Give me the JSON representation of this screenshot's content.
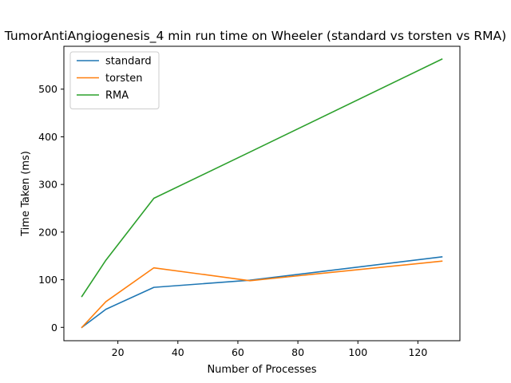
{
  "chart_data": {
    "type": "line",
    "title": "TumorAntiAngiogenesis_4 min run time on Wheeler (standard vs torsten vs RMA)",
    "xlabel": "Number of Processes",
    "ylabel": "Time Taken (ms)",
    "xlim": [
      2,
      134
    ],
    "ylim": [
      -28,
      590
    ],
    "xticks": [
      20,
      40,
      60,
      80,
      100,
      120
    ],
    "yticks": [
      0,
      100,
      200,
      300,
      400,
      500
    ],
    "grid": false,
    "legend_position": "top-left",
    "x": [
      8,
      16,
      32,
      64,
      128
    ],
    "series": [
      {
        "name": "standard",
        "color": "#1f77b4",
        "values": [
          0,
          38,
          84,
          99,
          148
        ]
      },
      {
        "name": "torsten",
        "color": "#ff7f0e",
        "values": [
          0,
          54,
          125,
          98,
          139
        ]
      },
      {
        "name": "RMA",
        "color": "#2ca02c",
        "values": [
          65,
          141,
          271,
          368,
          563
        ]
      }
    ]
  }
}
